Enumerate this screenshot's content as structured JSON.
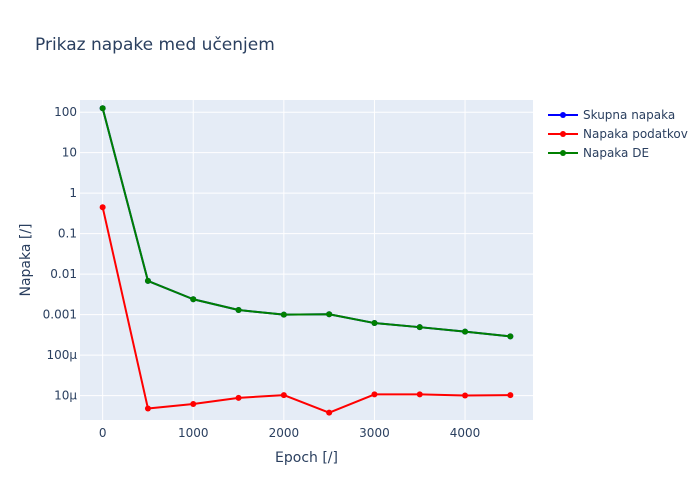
{
  "chart_data": {
    "type": "line",
    "title": "Prikaz napake med učenjem",
    "xlabel": "Epoch [/]",
    "ylabel": "Napaka [/]",
    "xlim": [
      -250,
      4750
    ],
    "ylim": [
      2.5e-06,
      200
    ],
    "y_scale": "log",
    "grid": true,
    "legend_position": "top-right",
    "x_ticks": [
      {
        "value": 0,
        "label": "0"
      },
      {
        "value": 1000,
        "label": "1000"
      },
      {
        "value": 2000,
        "label": "2000"
      },
      {
        "value": 3000,
        "label": "3000"
      },
      {
        "value": 4000,
        "label": "4000"
      }
    ],
    "y_ticks": [
      {
        "value": 100,
        "label": "100"
      },
      {
        "value": 10,
        "label": "10"
      },
      {
        "value": 1,
        "label": "1"
      },
      {
        "value": 0.1,
        "label": "0.1"
      },
      {
        "value": 0.01,
        "label": "0.01"
      },
      {
        "value": 0.001,
        "label": "0.001"
      },
      {
        "value": 0.0001,
        "label": "100µ"
      },
      {
        "value": 1e-05,
        "label": "10µ"
      }
    ],
    "x": [
      0,
      500,
      1000,
      1500,
      2000,
      2500,
      3000,
      3500,
      4000,
      4500
    ],
    "series": [
      {
        "name": "Skupna napaka",
        "color": "#0000ff",
        "values": [
          125,
          0.0068,
          0.0024,
          0.0013,
          0.001,
          0.00102,
          0.00062,
          0.00049,
          0.00038,
          0.00029
        ]
      },
      {
        "name": "Napaka podatkov",
        "color": "#ff0000",
        "values": [
          0.45,
          4.8e-06,
          6.2e-06,
          8.8e-06,
          1.03e-05,
          3.8e-06,
          1.07e-05,
          1.07e-05,
          1.01e-05,
          1.03e-05
        ]
      },
      {
        "name": "Napaka DE",
        "color": "#008000",
        "values": [
          125,
          0.0068,
          0.0024,
          0.0013,
          0.001,
          0.00102,
          0.00062,
          0.00049,
          0.00038,
          0.00029
        ]
      }
    ]
  }
}
